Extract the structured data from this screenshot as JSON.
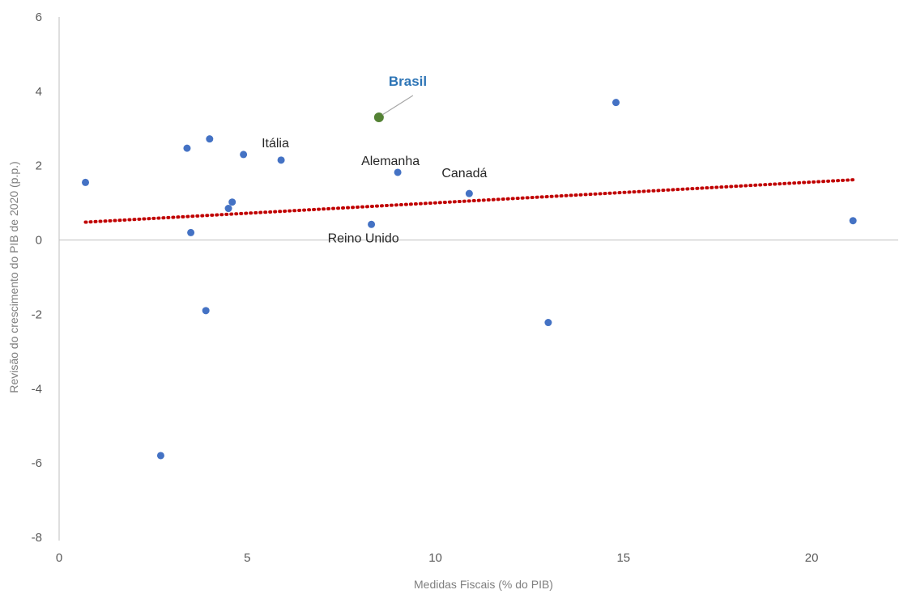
{
  "colors": {
    "point": "#4472c4",
    "highlight_point": "#548235",
    "highlight_label": "#2e75b6",
    "trendline": "#c00000",
    "axis": "#bfbfbf",
    "leader": "#a6a6a6"
  },
  "chart_data": {
    "type": "scatter",
    "title": "",
    "xlabel": "Medidas Fiscais (% do PIB)",
    "ylabel": "Revisão do crescimento do PIB de 2020 (p.p.)",
    "xlim": [
      0,
      22
    ],
    "ylim": [
      -8,
      6
    ],
    "x_ticks": [
      0,
      5,
      10,
      15,
      20
    ],
    "y_ticks": [
      -8,
      -6,
      -4,
      -2,
      0,
      2,
      4,
      6
    ],
    "grid": false,
    "legend": "none",
    "points": [
      {
        "x": 0.7,
        "y": 1.55,
        "label": ""
      },
      {
        "x": 2.7,
        "y": -5.8,
        "label": ""
      },
      {
        "x": 3.4,
        "y": 2.47,
        "label": ""
      },
      {
        "x": 3.5,
        "y": 0.2,
        "label": ""
      },
      {
        "x": 3.9,
        "y": -1.9,
        "label": ""
      },
      {
        "x": 4.0,
        "y": 2.72,
        "label": ""
      },
      {
        "x": 4.5,
        "y": 0.85,
        "label": ""
      },
      {
        "x": 4.6,
        "y": 1.02,
        "label": ""
      },
      {
        "x": 4.9,
        "y": 2.3,
        "label": ""
      },
      {
        "x": 5.9,
        "y": 2.15,
        "label": "Itália"
      },
      {
        "x": 8.3,
        "y": 0.42,
        "label": "Reino Unido"
      },
      {
        "x": 8.5,
        "y": 3.3,
        "label": "Brasil",
        "highlight": true
      },
      {
        "x": 9.0,
        "y": 1.82,
        "label": "Alemanha"
      },
      {
        "x": 10.9,
        "y": 1.25,
        "label": "Canadá"
      },
      {
        "x": 13.0,
        "y": -2.22,
        "label": ""
      },
      {
        "x": 14.8,
        "y": 3.7,
        "label": ""
      },
      {
        "x": 21.1,
        "y": 0.52,
        "label": ""
      }
    ],
    "trendline": {
      "type": "linear",
      "x": [
        0.7,
        21.1
      ],
      "y": [
        0.48,
        1.62
      ]
    }
  }
}
